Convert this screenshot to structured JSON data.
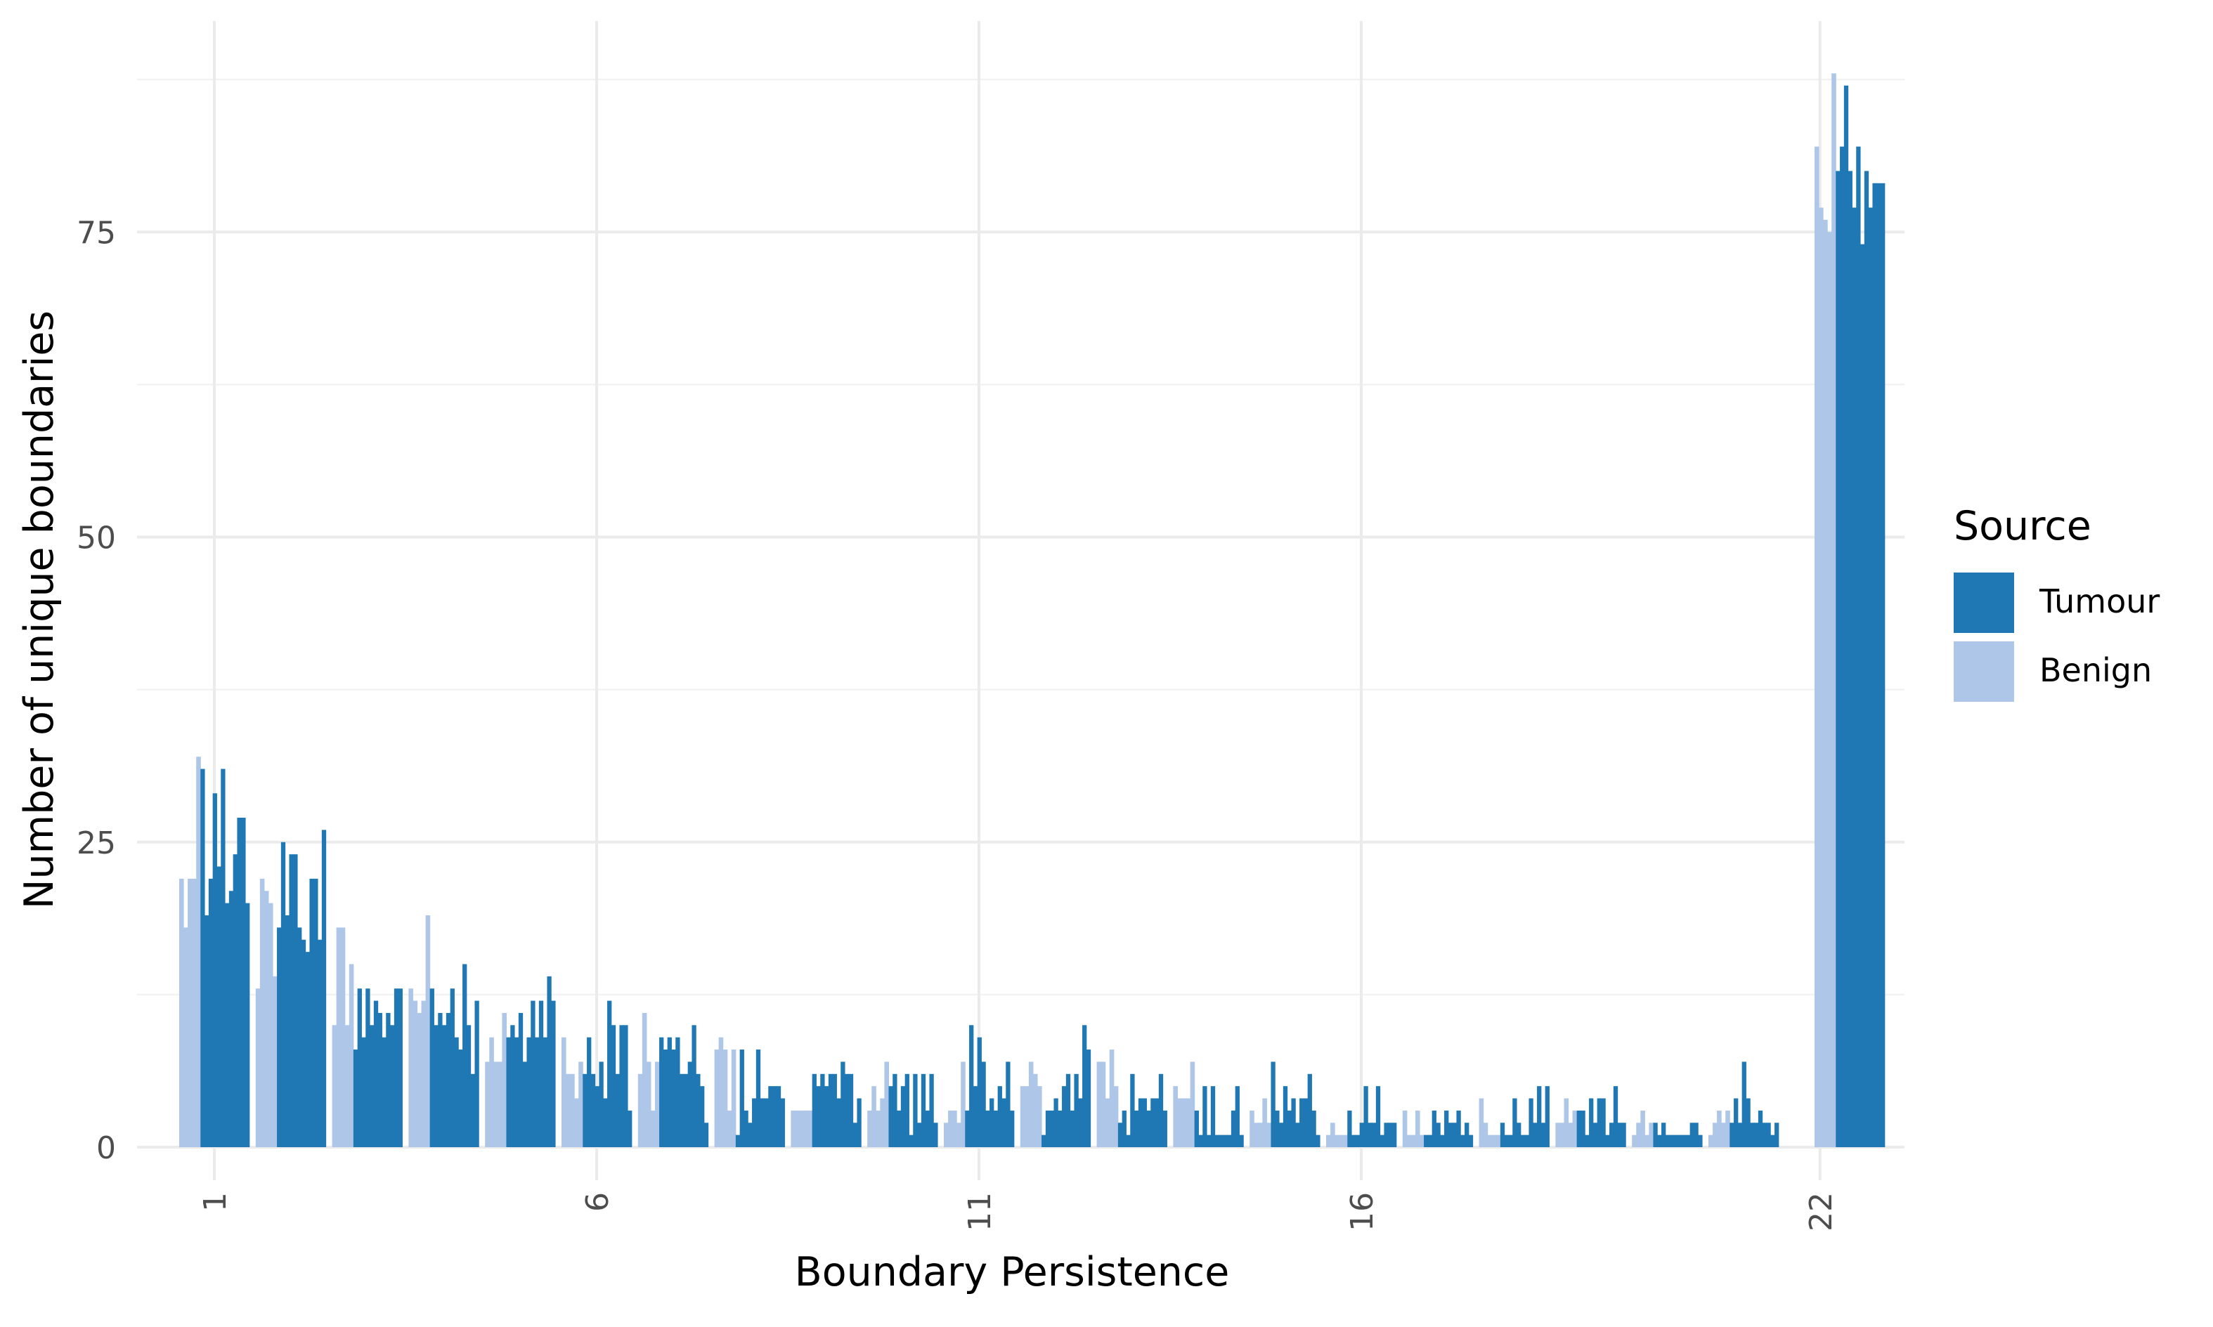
{
  "chart_data": {
    "type": "bar",
    "title": "",
    "xlabel": "Boundary Persistence",
    "ylabel": "Number of unique boundaries",
    "x_ticks": [
      "1",
      "6",
      "11",
      "16",
      "22"
    ],
    "y_ticks": [
      "0",
      "25",
      "50",
      "75"
    ],
    "ylim": [
      -3.5,
      92
    ],
    "grid": true,
    "legend": {
      "title": "Source",
      "placement": "right",
      "entries": [
        {
          "name": "Tumour",
          "color": "#1f78b4"
        },
        {
          "name": "Benign",
          "color": "#aec7e8"
        }
      ]
    },
    "groups": [
      {
        "persistence": 1,
        "benign": [
          22,
          18,
          22,
          22,
          32
        ],
        "tumour": [
          31,
          19,
          22,
          29,
          23,
          31,
          20,
          21,
          24,
          27,
          27,
          20
        ]
      },
      {
        "persistence": 2,
        "benign": [
          13,
          22,
          21,
          20,
          14
        ],
        "tumour": [
          18,
          25,
          19,
          24,
          24,
          18,
          17,
          16,
          22,
          22,
          17,
          26
        ]
      },
      {
        "persistence": 3,
        "benign": [
          10,
          18,
          18,
          10,
          15
        ],
        "tumour": [
          8,
          13,
          9,
          13,
          10,
          12,
          11,
          9,
          11,
          10,
          13,
          13
        ]
      },
      {
        "persistence": 4,
        "benign": [
          13,
          12,
          11,
          12,
          19
        ],
        "tumour": [
          13,
          10,
          11,
          10,
          11,
          13,
          9,
          8,
          15,
          10,
          6,
          12
        ]
      },
      {
        "persistence": 5,
        "benign": [
          7,
          9,
          7,
          7,
          11
        ],
        "tumour": [
          9,
          10,
          9,
          11,
          7,
          9,
          12,
          9,
          12,
          9,
          14,
          12
        ]
      },
      {
        "persistence": 6,
        "benign": [
          9,
          6,
          6,
          4,
          7
        ],
        "tumour": [
          6,
          9,
          6,
          5,
          7,
          4,
          12,
          10,
          6,
          10,
          10,
          3
        ]
      },
      {
        "persistence": 7,
        "benign": [
          6,
          11,
          7,
          3,
          7
        ],
        "tumour": [
          9,
          8,
          9,
          8,
          9,
          6,
          6,
          7,
          10,
          6,
          5,
          2
        ]
      },
      {
        "persistence": 8,
        "benign": [
          8,
          9,
          8,
          3,
          8
        ],
        "tumour": [
          1,
          8,
          3,
          2,
          4,
          8,
          4,
          4,
          5,
          5,
          5,
          4
        ]
      },
      {
        "persistence": 9,
        "benign": [
          3,
          3,
          3,
          3,
          3
        ],
        "tumour": [
          6,
          5,
          6,
          5,
          6,
          6,
          4,
          7,
          6,
          6,
          2,
          4
        ]
      },
      {
        "persistence": 10,
        "benign": [
          3,
          5,
          3,
          4,
          7
        ],
        "tumour": [
          5,
          6,
          3,
          5,
          6,
          1,
          6,
          2,
          6,
          3,
          6,
          2
        ]
      },
      {
        "persistence": 11,
        "benign": [
          2,
          3,
          3,
          2,
          7
        ],
        "tumour": [
          3,
          10,
          5,
          9,
          7,
          3,
          4,
          3,
          5,
          4,
          7,
          3
        ]
      },
      {
        "persistence": 12,
        "benign": [
          5,
          5,
          7,
          6,
          5
        ],
        "tumour": [
          1,
          3,
          3,
          4,
          3,
          5,
          6,
          3,
          6,
          4,
          10,
          8
        ]
      },
      {
        "persistence": 13,
        "benign": [
          7,
          7,
          4,
          8,
          5
        ],
        "tumour": [
          2,
          3,
          1,
          6,
          3,
          4,
          4,
          3,
          4,
          4,
          6,
          3
        ]
      },
      {
        "persistence": 14,
        "benign": [
          5,
          4,
          4,
          4,
          7
        ],
        "tumour": [
          3,
          1,
          5,
          1,
          5,
          1,
          1,
          1,
          1,
          3,
          5,
          1
        ]
      },
      {
        "persistence": 15,
        "benign": [
          3,
          2,
          2,
          4,
          2
        ],
        "tumour": [
          7,
          3,
          2,
          5,
          3,
          4,
          2,
          4,
          4,
          6,
          3,
          1
        ]
      },
      {
        "persistence": 16,
        "benign": [
          1,
          2,
          1,
          1,
          1
        ],
        "tumour": [
          3,
          1,
          1,
          2,
          5,
          2,
          2,
          5,
          1,
          2,
          2,
          2
        ]
      },
      {
        "persistence": 17,
        "benign": [
          3,
          1,
          1,
          3,
          1
        ],
        "tumour": [
          1,
          1,
          3,
          2,
          1,
          3,
          2,
          2,
          3,
          1,
          2,
          1
        ]
      },
      {
        "persistence": 18,
        "benign": [
          4,
          2,
          1,
          1,
          1
        ],
        "tumour": [
          2,
          1,
          1,
          4,
          2,
          1,
          1,
          4,
          2,
          5,
          2,
          5
        ]
      },
      {
        "persistence": 19,
        "benign": [
          2,
          2,
          4,
          2,
          3
        ],
        "tumour": [
          3,
          3,
          1,
          4,
          2,
          4,
          4,
          1,
          2,
          5,
          2,
          2
        ]
      },
      {
        "persistence": 20,
        "benign": [
          1,
          2,
          3,
          1,
          2
        ],
        "tumour": [
          2,
          1,
          2,
          1,
          1,
          1,
          1,
          1,
          1,
          2,
          2,
          1
        ]
      },
      {
        "persistence": 21,
        "benign": [
          1,
          2,
          3,
          2,
          3
        ],
        "tumour": [
          2,
          4,
          2,
          7,
          4,
          2,
          2,
          3,
          2,
          2,
          1,
          2
        ]
      },
      {
        "persistence": 22,
        "benign": [
          82,
          77,
          76,
          75,
          88
        ],
        "tumour": [
          80,
          82,
          87,
          80,
          77,
          82,
          74,
          80,
          77,
          79,
          79,
          79
        ]
      }
    ]
  }
}
